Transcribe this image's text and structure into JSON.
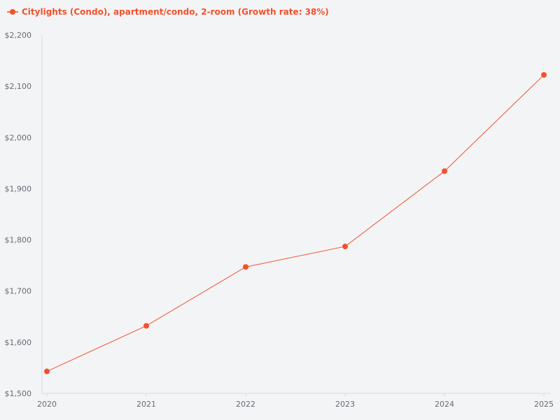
{
  "chart_data": {
    "type": "line",
    "title": "",
    "xlabel": "",
    "ylabel": "",
    "categories": [
      "2020",
      "2021",
      "2022",
      "2023",
      "2024",
      "2025"
    ],
    "series": [
      {
        "name": "Citylights (Condo), apartment/condo, 2-room (Growth rate: 38%)",
        "color": "#f4502a",
        "values": [
          1543,
          1632,
          1747,
          1787,
          1934,
          2122
        ]
      }
    ],
    "ylim": [
      1500,
      2200
    ],
    "y_ticks": [
      1500,
      1600,
      1700,
      1800,
      1900,
      2000,
      2100,
      2200
    ],
    "y_tick_labels": [
      "$1,500",
      "$1,600",
      "$1,700",
      "$1,800",
      "$1,900",
      "$2,000",
      "$2,100",
      "$2,200"
    ],
    "legend_position": "top-left",
    "grid": false
  }
}
